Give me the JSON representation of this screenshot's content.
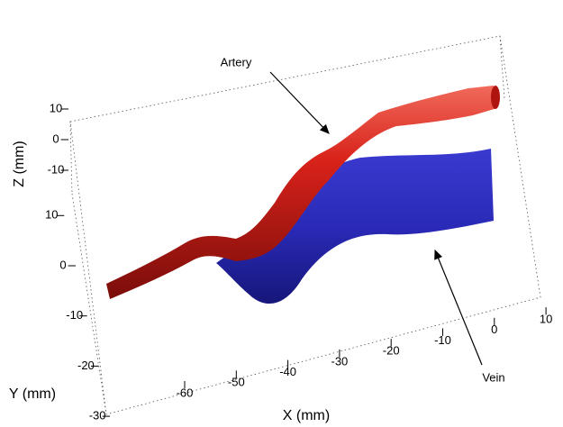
{
  "chart_data": {
    "type": "surface3d",
    "xlabel": "X (mm)",
    "ylabel": "Y (mm)",
    "zlabel": "Z (mm)",
    "xticks": [
      -60,
      -50,
      -40,
      -30,
      -20,
      -10,
      0,
      10
    ],
    "yticks": [
      -30,
      -20,
      -10,
      0,
      10
    ],
    "zticks": [
      -10,
      0,
      10
    ],
    "annotations": [
      "Artery",
      "Vein"
    ],
    "grid": true
  }
}
